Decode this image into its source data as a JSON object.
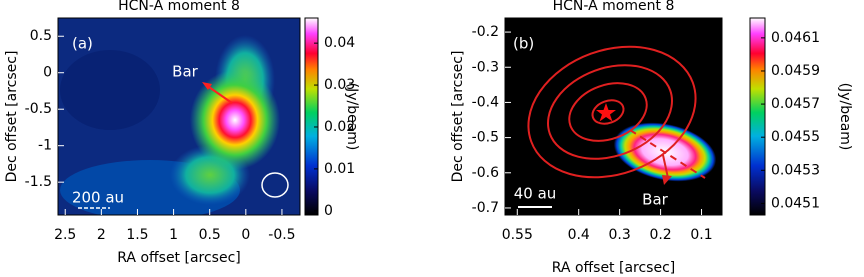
{
  "chart_data": [
    {
      "type": "image",
      "title": "HCN-A moment 8",
      "xlabel": "RA offset [arcsec]",
      "ylabel": "Dec offset [arcsec]",
      "xlim": [
        2.6,
        -0.75
      ],
      "xticks": [
        2.5,
        2,
        1.5,
        1,
        0.5,
        0,
        -0.5
      ],
      "ylim": [
        -1.95,
        0.75
      ],
      "yticks": [
        -1.5,
        -1,
        -0.5,
        0,
        0.5
      ],
      "colorbar": {
        "label": "(Jy/beam)",
        "lim": [
          -0.001,
          0.046
        ],
        "ticks": [
          0,
          0.01,
          0.02,
          0.03,
          0.04
        ]
      },
      "annotations": [
        "(a)",
        "Bar",
        "200 au"
      ]
    },
    {
      "type": "image",
      "title": "HCN-A moment 8",
      "xlabel": "RA offset [arcsec]",
      "ylabel": "Dec offset [arcsec]",
      "xlim": [
        0.58,
        0.05
      ],
      "xticks": [
        0.55,
        0.4,
        0.3,
        0.2,
        0.1
      ],
      "ylim": [
        -0.72,
        -0.16
      ],
      "yticks": [
        -0.7,
        -0.6,
        -0.5,
        -0.4,
        -0.3,
        -0.2
      ],
      "colorbar": {
        "label": "(Jy/beam)",
        "lim": [
          0.04503,
          0.04622
        ],
        "ticks": [
          0.0451,
          0.0453,
          0.0455,
          0.0457,
          0.0459,
          0.0461
        ]
      },
      "annotations": [
        "(b)",
        "40 au",
        "Bar"
      ]
    }
  ]
}
